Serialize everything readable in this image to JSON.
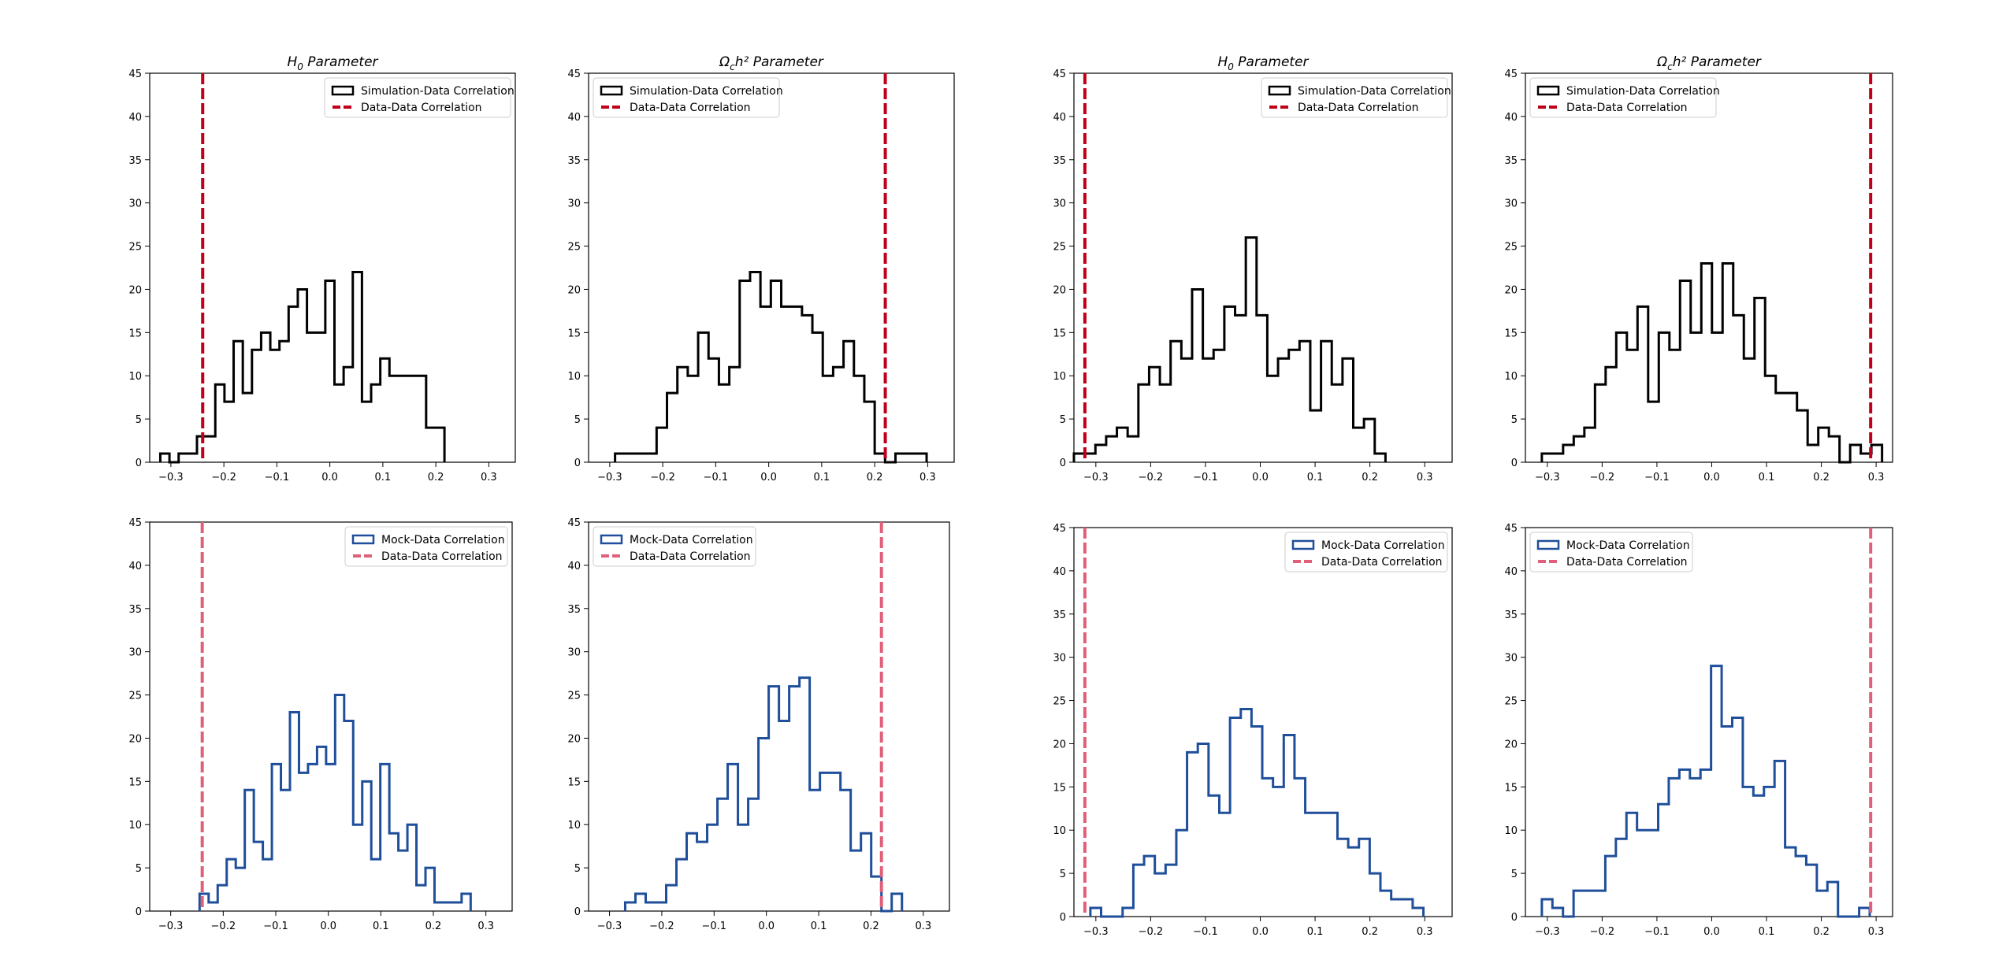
{
  "palette": {
    "sim": "#000000",
    "mock": "#1f4e9a",
    "data_dark": "#c0001a",
    "data_light": "#e0607a"
  },
  "chart_data": [
    {
      "id": "p1",
      "type": "histogram",
      "title_main": "H",
      "title_sub": "0",
      "title_rest": " Parameter",
      "series_label": "Simulation-Data Correlation",
      "line_label": "Data-Data Correlation",
      "style": "sim",
      "legend": "top-right",
      "xlim": [
        -0.34,
        0.35
      ],
      "ylim": [
        0,
        45
      ],
      "xticks": [
        "-0.3",
        "-0.2",
        "-0.1",
        "0.0",
        "0.1",
        "0.2",
        "0.3"
      ],
      "yticks": [
        "0",
        "5",
        "10",
        "15",
        "20",
        "25",
        "30",
        "35",
        "40",
        "45"
      ],
      "bins_start": -0.32,
      "bin_width": 0.0173,
      "counts": [
        1,
        0,
        1,
        1,
        3,
        3,
        9,
        7,
        14,
        8,
        13,
        15,
        13,
        14,
        18,
        20,
        15,
        15,
        21,
        9,
        11,
        22,
        7,
        9,
        12,
        10,
        10,
        10,
        10,
        4,
        4
      ],
      "data_line": -0.24
    },
    {
      "id": "p2",
      "type": "histogram",
      "title_main": "Ω",
      "title_sub": "c",
      "title_rest": "h² Parameter",
      "series_label": "Simulation-Data Correlation",
      "line_label": "Data-Data Correlation",
      "style": "sim",
      "legend": "top-left",
      "xlim": [
        -0.34,
        0.35
      ],
      "ylim": [
        0,
        45
      ],
      "xticks": [
        "-0.3",
        "-0.2",
        "-0.1",
        "0.0",
        "0.1",
        "0.2",
        "0.3"
      ],
      "yticks": [
        "0",
        "5",
        "10",
        "15",
        "20",
        "25",
        "30",
        "35",
        "40",
        "45"
      ],
      "bins_start": -0.29,
      "bin_width": 0.0196,
      "counts": [
        1,
        1,
        1,
        1,
        4,
        8,
        11,
        10,
        15,
        12,
        9,
        11,
        21,
        22,
        18,
        21,
        18,
        18,
        17,
        15,
        10,
        11,
        14,
        10,
        7,
        1,
        0,
        1,
        1,
        1
      ],
      "data_line": 0.22
    },
    {
      "id": "p3",
      "type": "histogram",
      "title_main": "H",
      "title_sub": "0",
      "title_rest": " Parameter",
      "series_label": "Simulation-Data Correlation",
      "line_label": "Data-Data Correlation",
      "style": "sim",
      "legend": "top-right",
      "xlim": [
        -0.34,
        0.35
      ],
      "ylim": [
        0,
        45
      ],
      "xticks": [
        "-0.3",
        "-0.2",
        "-0.1",
        "0.0",
        "0.1",
        "0.2",
        "0.3"
      ],
      "yticks": [
        "0",
        "5",
        "10",
        "15",
        "20",
        "25",
        "30",
        "35",
        "40",
        "45"
      ],
      "bins_start": -0.34,
      "bin_width": 0.0196,
      "counts": [
        1,
        1,
        2,
        3,
        4,
        3,
        9,
        11,
        9,
        14,
        12,
        20,
        12,
        13,
        18,
        17,
        26,
        17,
        10,
        12,
        13,
        14,
        6,
        14,
        9,
        12,
        4,
        5,
        1
      ],
      "data_line": -0.32
    },
    {
      "id": "p4",
      "type": "histogram",
      "title_main": "Ω",
      "title_sub": "c",
      "title_rest": "h² Parameter",
      "series_label": "Simulation-Data Correlation",
      "line_label": "Data-Data Correlation",
      "style": "sim",
      "legend": "top-left",
      "xlim": [
        -0.34,
        0.33
      ],
      "ylim": [
        0,
        45
      ],
      "xticks": [
        "-0.3",
        "-0.2",
        "-0.1",
        "0.0",
        "0.1",
        "0.2",
        "0.3"
      ],
      "yticks": [
        "0",
        "5",
        "10",
        "15",
        "20",
        "25",
        "30",
        "35",
        "40",
        "45"
      ],
      "bins_start": -0.31,
      "bin_width": 0.0194,
      "counts": [
        1,
        1,
        2,
        3,
        4,
        9,
        11,
        15,
        13,
        18,
        7,
        15,
        13,
        21,
        15,
        23,
        15,
        23,
        17,
        12,
        19,
        10,
        8,
        8,
        6,
        2,
        4,
        3,
        0,
        2,
        1,
        2
      ],
      "data_line": 0.29
    },
    {
      "id": "p5",
      "type": "histogram",
      "series_label": "Mock-Data Correlation",
      "line_label": "Data-Data Correlation",
      "style": "mock",
      "legend": "top-right",
      "xlim": [
        -0.34,
        0.35
      ],
      "ylim": [
        0,
        45
      ],
      "xticks": [
        "-0.3",
        "-0.2",
        "-0.1",
        "0.0",
        "0.1",
        "0.2",
        "0.3"
      ],
      "yticks": [
        "0",
        "5",
        "10",
        "15",
        "20",
        "25",
        "30",
        "35",
        "40",
        "45"
      ],
      "bins_start": -0.245,
      "bin_width": 0.0172,
      "counts": [
        2,
        1,
        3,
        6,
        5,
        14,
        8,
        6,
        17,
        14,
        23,
        16,
        17,
        19,
        17,
        25,
        22,
        10,
        15,
        6,
        17,
        9,
        7,
        10,
        3,
        5,
        1,
        1,
        1,
        2
      ],
      "data_line": -0.24
    },
    {
      "id": "p6",
      "type": "histogram",
      "series_label": "Mock-Data Correlation",
      "line_label": "Data-Data Correlation",
      "style": "mock",
      "legend": "top-left",
      "xlim": [
        -0.34,
        0.35
      ],
      "ylim": [
        0,
        45
      ],
      "xticks": [
        "-0.3",
        "-0.2",
        "-0.1",
        "0.0",
        "0.1",
        "0.2",
        "0.3"
      ],
      "yticks": [
        "0",
        "5",
        "10",
        "15",
        "20",
        "25",
        "30",
        "35",
        "40",
        "45"
      ],
      "bins_start": -0.27,
      "bin_width": 0.0196,
      "counts": [
        1,
        2,
        1,
        1,
        3,
        6,
        9,
        8,
        10,
        13,
        17,
        10,
        13,
        20,
        26,
        22,
        26,
        27,
        14,
        16,
        16,
        14,
        7,
        9,
        4,
        0,
        2
      ],
      "data_line": 0.22
    },
    {
      "id": "p7",
      "type": "histogram",
      "series_label": "Mock-Data Correlation",
      "line_label": "Data-Data Correlation",
      "style": "mock",
      "legend": "top-right",
      "xlim": [
        -0.34,
        0.35
      ],
      "ylim": [
        0,
        45
      ],
      "xticks": [
        "-0.3",
        "-0.2",
        "-0.1",
        "0.0",
        "0.1",
        "0.2",
        "0.3"
      ],
      "yticks": [
        "0",
        "5",
        "10",
        "15",
        "20",
        "25",
        "30",
        "35",
        "40",
        "45"
      ],
      "bins_start": -0.31,
      "bin_width": 0.0196,
      "counts": [
        1,
        0,
        0,
        1,
        6,
        7,
        5,
        6,
        10,
        19,
        20,
        14,
        12,
        23,
        24,
        22,
        16,
        15,
        21,
        16,
        12,
        12,
        12,
        9,
        8,
        9,
        5,
        3,
        2,
        2,
        1
      ],
      "data_line": -0.32
    },
    {
      "id": "p8",
      "type": "histogram",
      "series_label": "Mock-Data Correlation",
      "line_label": "Data-Data Correlation",
      "style": "mock",
      "legend": "top-left",
      "xlim": [
        -0.34,
        0.33
      ],
      "ylim": [
        0,
        45
      ],
      "xticks": [
        "-0.3",
        "-0.2",
        "-0.1",
        "0.0",
        "0.1",
        "0.2",
        "0.3"
      ],
      "yticks": [
        "0",
        "5",
        "10",
        "15",
        "20",
        "25",
        "30",
        "35",
        "40",
        "45"
      ],
      "bins_start": -0.31,
      "bin_width": 0.0193,
      "counts": [
        2,
        1,
        0,
        3,
        3,
        3,
        7,
        9,
        12,
        10,
        10,
        13,
        16,
        17,
        16,
        17,
        29,
        22,
        23,
        15,
        14,
        15,
        18,
        8,
        7,
        6,
        3,
        4,
        0,
        0,
        1
      ],
      "data_line": 0.29
    }
  ]
}
